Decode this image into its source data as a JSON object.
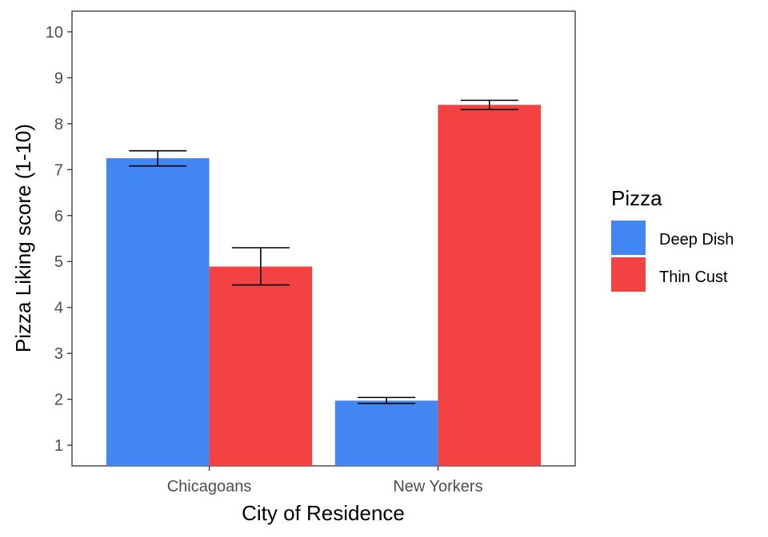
{
  "chart_data": {
    "type": "bar",
    "xlabel": "City of Residence",
    "ylabel": "Pizza Liking score (1-10)",
    "ylim": [
      0.55,
      10.45
    ],
    "yticks": [
      1,
      2,
      3,
      4,
      5,
      6,
      7,
      8,
      9,
      10
    ],
    "categories": [
      "Chicagoans",
      "New Yorkers"
    ],
    "legend_title": "Pizza",
    "legend_position": "right",
    "series": [
      {
        "name": "Deep Dish",
        "color": "#4286f4",
        "values": [
          7.25,
          1.97
        ],
        "err_low": [
          7.08,
          1.91
        ],
        "err_high": [
          7.41,
          2.04
        ]
      },
      {
        "name": "Thin Cust",
        "color": "#f44242",
        "values": [
          4.89,
          8.41
        ],
        "err_low": [
          4.49,
          8.31
        ],
        "err_high": [
          5.3,
          8.51
        ]
      }
    ]
  }
}
